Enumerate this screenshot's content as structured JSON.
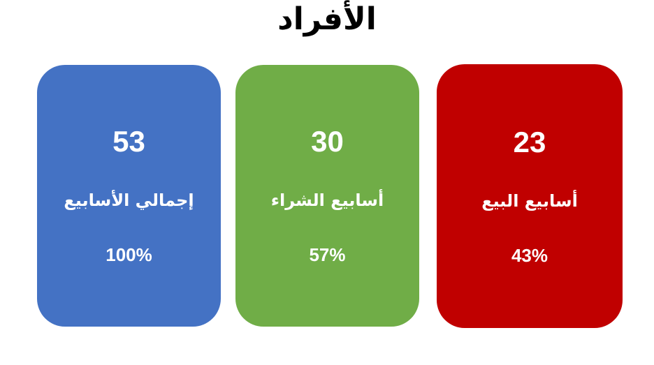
{
  "title": "الأفراد",
  "cards": [
    {
      "value": "53",
      "label": "إجمالي الأسابيع",
      "percent": "100%",
      "color": "#4472C4"
    },
    {
      "value": "30",
      "label": "أسابيع الشراء",
      "percent": "57%",
      "color": "#70AD47"
    },
    {
      "value": "23",
      "label": "أسابيع البيع",
      "percent": "43%",
      "color": "#C00000"
    }
  ]
}
